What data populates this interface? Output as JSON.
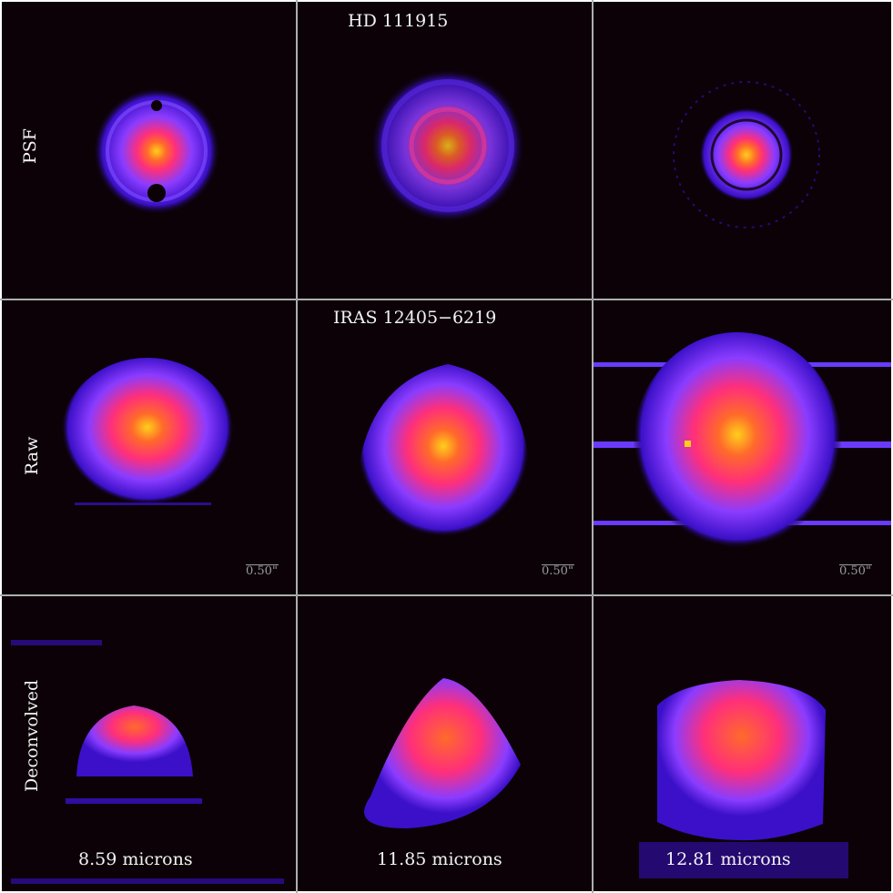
{
  "figure": {
    "headers": {
      "psf_target": "HD 111915",
      "science_target": "IRAS 12405−6219"
    },
    "row_labels": [
      "PSF",
      "Raw",
      "Deconvolved"
    ],
    "wavelengths": [
      "8.59 microns",
      "11.85 microns",
      "12.81 microns"
    ],
    "scale_bar_label": "0.50\"",
    "colormap": [
      "#0b0106",
      "#3b10c8",
      "#8a3cff",
      "#ff2f7a",
      "#ff6a2a",
      "#ffcf1a"
    ],
    "border_color": "#9a9a9a"
  }
}
